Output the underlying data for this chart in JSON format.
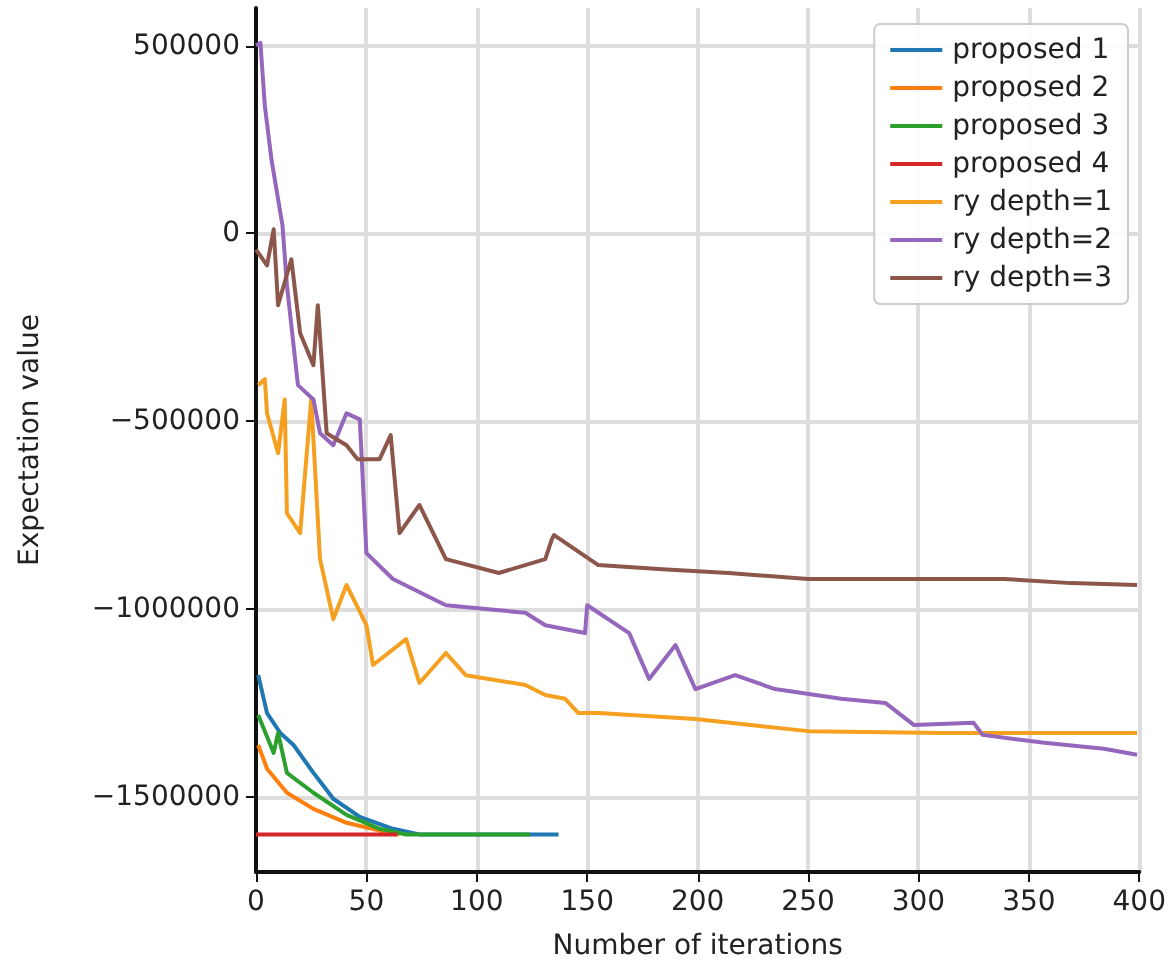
{
  "chart_data": {
    "type": "line",
    "xlabel": "Number of iterations",
    "ylabel": "Expectation value",
    "xlim": [
      0,
      400
    ],
    "xticks": [
      0,
      50,
      100,
      150,
      200,
      250,
      300,
      350,
      400
    ],
    "ylim": [
      -1700000,
      600000
    ],
    "yticks": [
      -1500000,
      -1000000,
      -500000,
      0,
      500000
    ],
    "grid": true,
    "legend": "top right",
    "marker": "none",
    "line_style": "solid",
    "series": [
      {
        "name": "proposed 1",
        "color": "#1f77b4",
        "x": [
          1,
          5,
          11,
          17,
          26,
          35,
          47,
          62,
          74,
          137
        ],
        "values": [
          -1176000,
          -1277000,
          -1330000,
          -1362000,
          -1436000,
          -1505000,
          -1553000,
          -1585000,
          -1600000,
          -1600000
        ]
      },
      {
        "name": "proposed 2",
        "color": "#ff7f0e",
        "x": [
          1,
          5,
          14,
          26,
          41,
          56,
          65
        ],
        "values": [
          -1362000,
          -1425000,
          -1489000,
          -1532000,
          -1569000,
          -1590000,
          -1600000
        ]
      },
      {
        "name": "proposed 3",
        "color": "#2ca02c",
        "x": [
          1,
          8,
          10,
          14,
          26,
          41,
          56,
          68,
          124
        ],
        "values": [
          -1282000,
          -1383000,
          -1330000,
          -1436000,
          -1489000,
          -1548000,
          -1585000,
          -1600000,
          -1600000
        ]
      },
      {
        "name": "proposed 4",
        "color": "#d62728",
        "x": [
          0,
          64
        ],
        "values": [
          -1600000,
          -1600000
        ]
      },
      {
        "name": "ry depth=1",
        "color": "#f5a020",
        "x": [
          1,
          4,
          5,
          10,
          13,
          14,
          20,
          25,
          29,
          35,
          41,
          50,
          53,
          68,
          74,
          86,
          95,
          122,
          131,
          140,
          146,
          155,
          199,
          250,
          310,
          399
        ],
        "values": [
          -404000,
          -388000,
          -479000,
          -585000,
          -442000,
          -745000,
          -798000,
          -442000,
          -867000,
          -1027000,
          -936000,
          -1043000,
          -1149000,
          -1080000,
          -1197000,
          -1117000,
          -1176000,
          -1202000,
          -1229000,
          -1239000,
          -1277000,
          -1277000,
          -1293000,
          -1325000,
          -1330000,
          -1330000
        ]
      },
      {
        "name": "ry depth=2",
        "color": "#9467bd",
        "x": [
          0,
          2,
          4,
          7,
          12,
          14,
          19,
          26,
          29,
          35,
          41,
          47,
          50,
          62,
          86,
          122,
          131,
          149,
          150,
          169,
          178,
          190,
          199,
          217,
          235,
          265,
          285,
          298,
          325,
          329,
          357,
          384,
          399
        ],
        "values": [
          500000,
          507000,
          340000,
          197000,
          21000,
          -138000,
          -404000,
          -442000,
          -532000,
          -564000,
          -479000,
          -495000,
          -851000,
          -920000,
          -990000,
          -1010000,
          -1043000,
          -1064000,
          -990000,
          -1064000,
          -1186000,
          -1096000,
          -1213000,
          -1176000,
          -1213000,
          -1239000,
          -1250000,
          -1309000,
          -1303000,
          -1335000,
          -1356000,
          -1372000,
          -1388000
        ]
      },
      {
        "name": "ry depth=3",
        "color": "#8c564b",
        "x": [
          0,
          5,
          8,
          10,
          16,
          20,
          26,
          28,
          32,
          41,
          46,
          56,
          61,
          65,
          74,
          86,
          110,
          131,
          134,
          135,
          155,
          184,
          214,
          250,
          294,
          339,
          369,
          399
        ],
        "values": [
          -43000,
          -85000,
          11000,
          -191000,
          -69000,
          -266000,
          -351000,
          -191000,
          -532000,
          -564000,
          -601000,
          -601000,
          -537000,
          -798000,
          -723000,
          -867000,
          -904000,
          -867000,
          -814000,
          -803000,
          -883000,
          -894000,
          -904000,
          -920000,
          -920000,
          -920000,
          -931000,
          -936000
        ]
      }
    ]
  }
}
